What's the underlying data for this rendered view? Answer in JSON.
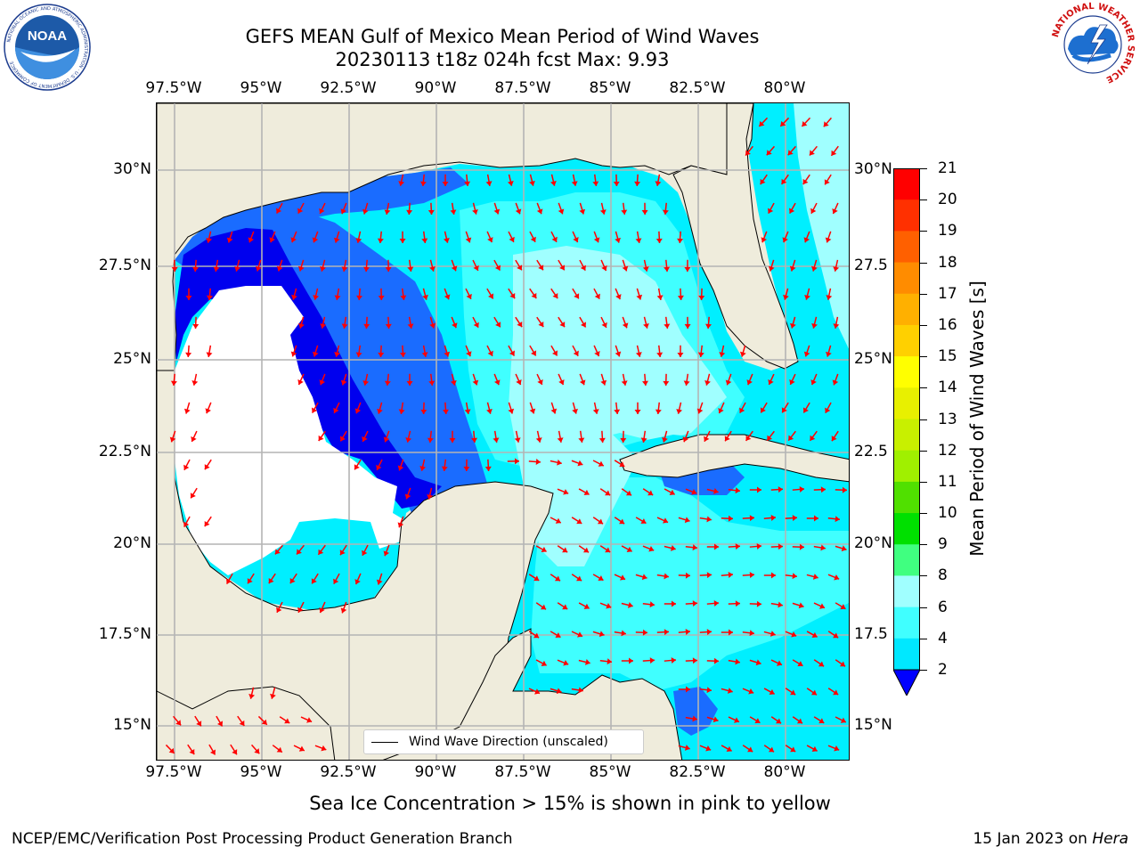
{
  "header": {
    "title_line1": "GEFS MEAN Gulf of Mexico Mean Period of Wind Waves",
    "title_line2": "20230113 t18z 024h fcst   Max: 9.93"
  },
  "logos": {
    "noaa_text": "NOAA",
    "noaa_ring": "NATIONAL OCEANIC AND ATMOSPHERIC ADMINISTRATION · U.S. DEPARTMENT OF COMMERCE",
    "nws_ring": "NATIONAL WEATHER SERVICE"
  },
  "axes": {
    "lon_ticks": [
      "97.5°W",
      "95°W",
      "92.5°W",
      "90°W",
      "87.5°W",
      "85°W",
      "82.5°W",
      "80°W"
    ],
    "lat_ticks": [
      "30°N",
      "27.5°N",
      "25°N",
      "22.5°N",
      "20°N",
      "17.5°N",
      "15°N"
    ],
    "lat_ticks_right": [
      "30°N",
      "27.5",
      "25°N",
      "22.5",
      "20°N",
      "17.5",
      "15°N"
    ]
  },
  "legend": {
    "label": "Wind Wave Direction (unscaled)"
  },
  "colorbar": {
    "title": "Mean Period of Wind Waves [s]",
    "ticks": [
      "2",
      "4",
      "6",
      "8",
      "9",
      "10",
      "11",
      "12",
      "13",
      "14",
      "15",
      "16",
      "17",
      "18",
      "19",
      "20",
      "21"
    ],
    "colors": [
      "#0055ff",
      "#00e8ff",
      "#40ffff",
      "#a0ffff",
      "#40ff80",
      "#00e000",
      "#50e000",
      "#a0f000",
      "#c8f000",
      "#e8f000",
      "#ffff00",
      "#ffd000",
      "#ffb000",
      "#ff8c00",
      "#ff6000",
      "#ff3000",
      "#ff0000"
    ],
    "extend_below_color": "#0000ff"
  },
  "colors": {
    "land": "#efecdc",
    "coast": "#000000",
    "grid": "#b4b4b4",
    "arrow": "#ff0000",
    "band_2_4": "#1a6cff",
    "band_lt2": "#0000ee",
    "band_4_6": "#00efff",
    "band_6_8": "#40ffff",
    "band_8_9": "#a0ffff",
    "band_9_10": "#40f070"
  },
  "footer": {
    "note": "Sea Ice Concentration > 15% is shown in pink to yellow",
    "credit": "NCEP/EMC/Verification Post Processing Product Generation Branch",
    "date_prefix": "15 Jan 2023 on ",
    "machine": "Hera"
  }
}
